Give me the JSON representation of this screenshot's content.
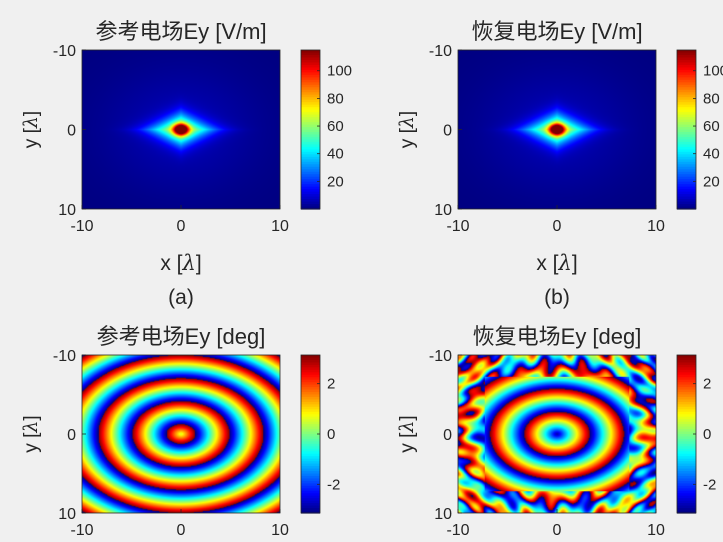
{
  "colors": {
    "background": "#f0f0f0",
    "plot_face": "#00007f"
  },
  "chart_data": [
    {
      "id": "a",
      "type": "heatmap",
      "title": "参考电场Ey [V/m]",
      "subtitle": "(a)",
      "field": "magnitude",
      "xlabel": "x [",
      "ylabel": "y [",
      "unit_symbol": "λ",
      "unit_close": "]",
      "xlim": [
        -10,
        10
      ],
      "ylim": [
        -10,
        10
      ],
      "xticks": [
        "-10",
        "0",
        "10"
      ],
      "yticks": [
        "-10",
        "0",
        "10"
      ],
      "clim": [
        0,
        115
      ],
      "cticks": [
        "20",
        "40",
        "60",
        "80",
        "100"
      ],
      "cticks_values": [
        20,
        40,
        60,
        80,
        100
      ],
      "colormap": "jet",
      "peak": 115
    },
    {
      "id": "b",
      "type": "heatmap",
      "title": "恢复电场Ey [V/m]",
      "subtitle": "(b)",
      "field": "magnitude",
      "xlabel": "x [",
      "ylabel": "y [",
      "unit_symbol": "λ",
      "unit_close": "]",
      "xlim": [
        -10,
        10
      ],
      "ylim": [
        -10,
        10
      ],
      "xticks": [
        "-10",
        "0",
        "10"
      ],
      "yticks": [
        "-10",
        "0",
        "10"
      ],
      "clim": [
        0,
        115
      ],
      "cticks": [
        "20",
        "40",
        "60",
        "80",
        "100"
      ],
      "cticks_values": [
        20,
        40,
        60,
        80,
        100
      ],
      "colormap": "jet",
      "peak": 115
    },
    {
      "id": "c",
      "type": "heatmap",
      "title": "参考电场Ey [deg]",
      "field": "phase",
      "ylabel": "y [",
      "unit_symbol": "λ",
      "unit_close": "]",
      "xlim": [
        -10,
        10
      ],
      "ylim": [
        -10,
        10
      ],
      "xticks": [
        "-10",
        "0",
        "10"
      ],
      "yticks": [
        "-10",
        "0",
        "10"
      ],
      "clim": [
        -3.14,
        3.14
      ],
      "cticks": [
        "-2",
        "0",
        "2"
      ],
      "cticks_values": [
        -2,
        0,
        2
      ],
      "colormap": "jet",
      "phase_offset": 0.5
    },
    {
      "id": "d",
      "type": "heatmap",
      "title": "恢复电场Ey [deg]",
      "field": "phase",
      "ylabel": "y [",
      "unit_symbol": "λ",
      "unit_close": "]",
      "xlim": [
        -10,
        10
      ],
      "ylim": [
        -10,
        10
      ],
      "xticks": [
        "-10",
        "0",
        "10"
      ],
      "yticks": [
        "-10",
        "0",
        "10"
      ],
      "clim": [
        -3.14,
        3.14
      ],
      "cticks": [
        "-2",
        "0",
        "2"
      ],
      "cticks_values": [
        -2,
        0,
        2
      ],
      "colormap": "jet",
      "phase_offset": -2.9
    }
  ]
}
